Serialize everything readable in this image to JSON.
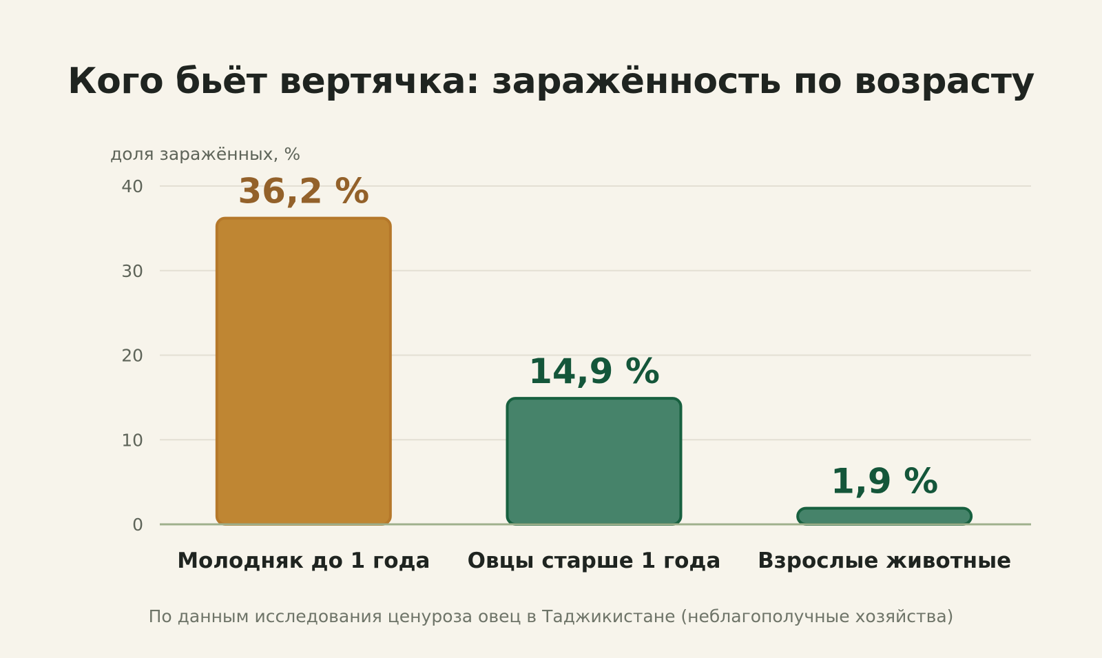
{
  "chart_data": {
    "type": "bar",
    "title": "Кого бьёт вертячка: заражённость по возрасту",
    "ylabel": "доля заражённых, %",
    "xlabel": "",
    "ylim": [
      0,
      40
    ],
    "yticks": [
      0,
      10,
      20,
      30,
      40
    ],
    "grid": true,
    "categories": [
      "Молодняк до 1 года",
      "Овцы старше 1 года",
      "Взрослые животные"
    ],
    "values": [
      36.2,
      14.9,
      1.9
    ],
    "value_labels": [
      "36,2 %",
      "14,9 %",
      "1,9 %"
    ],
    "bar_colors": [
      "#bf8633",
      "#46836a",
      "#46836a"
    ],
    "bar_border_colors": [
      "#b5782a",
      "#17603f",
      "#17603f"
    ],
    "label_colors": [
      "#93612a",
      "#14563a",
      "#14563a"
    ],
    "source": "По данным исследования ценуроза овец в Таджикистане (неблагополучные хозяйства)"
  }
}
